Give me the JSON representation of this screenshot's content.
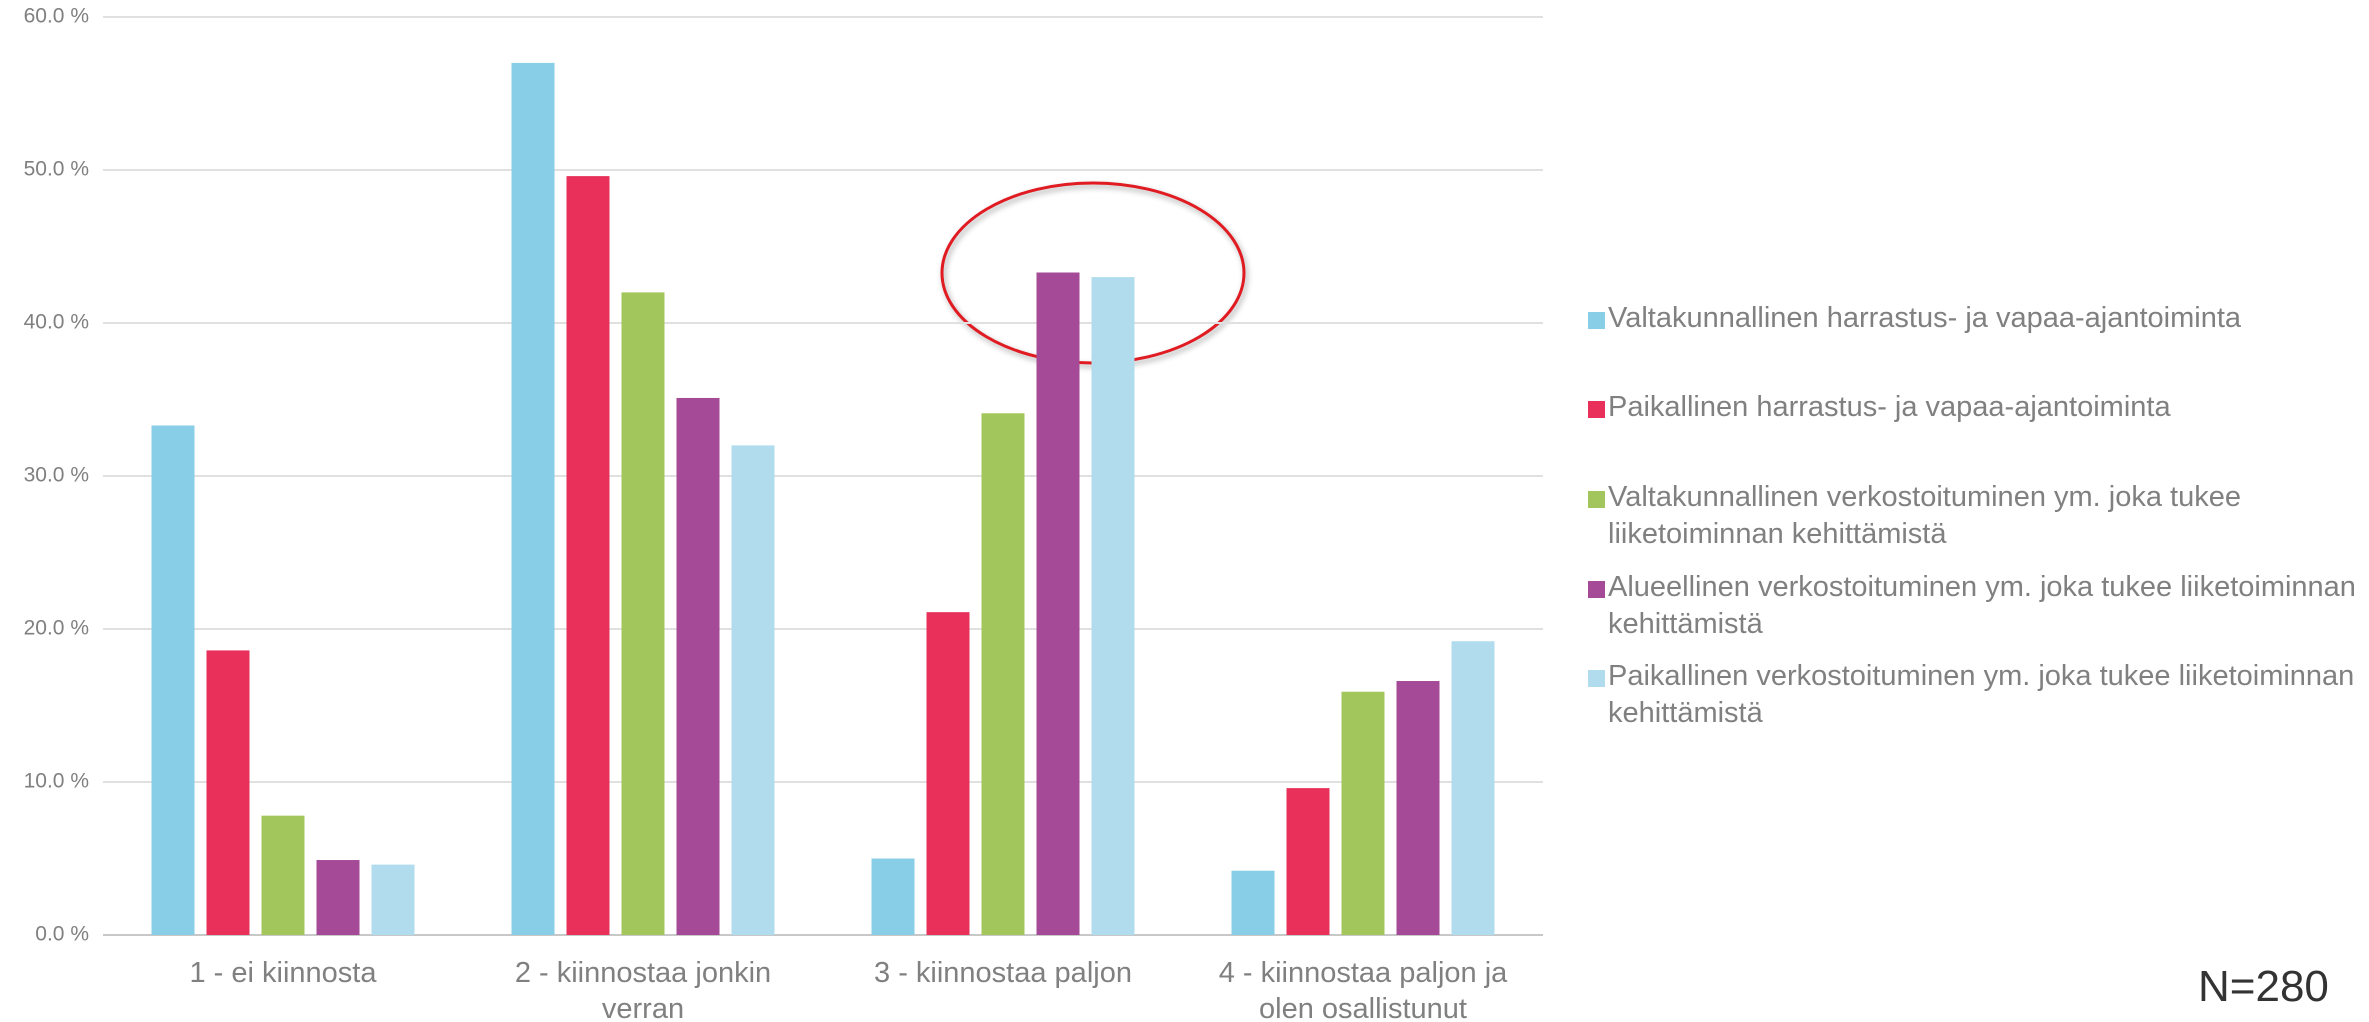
{
  "chart_data": {
    "type": "bar",
    "categories": [
      "1 - ei kiinnosta",
      "2 - kiinnostaa jonkin verran",
      "3 - kiinnostaa paljon",
      "4 - kiinnostaa paljon ja olen osallistunut"
    ],
    "series": [
      {
        "name": "Valtakunnallinen harrastus- ja vapaa-ajantoiminta",
        "color": "#87cee6",
        "values": [
          33.3,
          57.0,
          5.0,
          4.2
        ]
      },
      {
        "name": "Paikallinen harrastus- ja vapaa-ajantoiminta",
        "color": "#e8305a",
        "values": [
          18.6,
          49.6,
          21.1,
          9.6
        ]
      },
      {
        "name": "Valtakunnallinen verkostoituminen ym. joka tukee liiketoiminnan kehittämistä",
        "color": "#a3c65c",
        "values": [
          7.8,
          42.0,
          34.1,
          15.9
        ]
      },
      {
        "name": "Alueellinen verkostoituminen ym. joka tukee liiketoiminnan kehittämistä",
        "color": "#a44a96",
        "values": [
          4.9,
          35.1,
          43.3,
          16.6
        ]
      },
      {
        "name": "Paikallinen verkostoituminen ym. joka tukee liiketoiminnan kehittämistä",
        "color": "#b0dced",
        "values": [
          4.6,
          32.0,
          43.0,
          19.2
        ]
      }
    ],
    "ylim": [
      0,
      60
    ],
    "yticks": [
      {
        "value": 0,
        "label": "0.0 %"
      },
      {
        "value": 10,
        "label": "10.0 %"
      },
      {
        "value": 20,
        "label": "20.0 %"
      },
      {
        "value": 30,
        "label": "30.0 %"
      },
      {
        "value": 40,
        "label": "40.0 %"
      },
      {
        "value": 50,
        "label": "50.0 %"
      },
      {
        "value": 60,
        "label": "60.0 %"
      }
    ],
    "grid": true,
    "legend": "right",
    "annotation": "N=280"
  }
}
